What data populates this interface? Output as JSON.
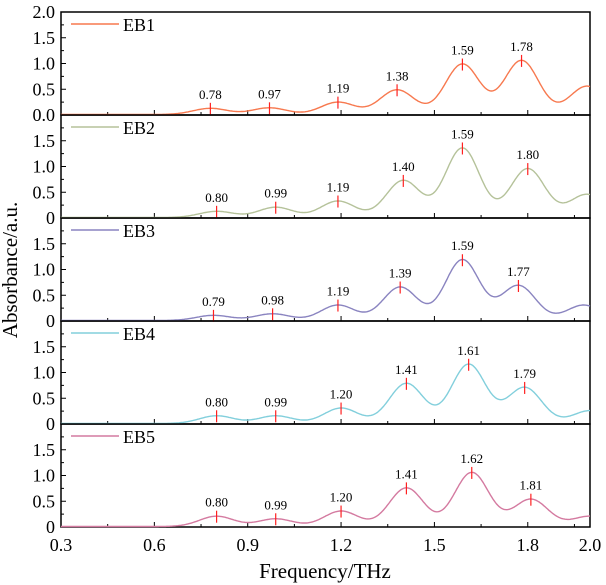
{
  "chart_data": {
    "type": "line",
    "xlabel": "Frequency/THz",
    "ylabel": "Absorbance/a.u.",
    "xlim": [
      0.3,
      2.0
    ],
    "ylim": [
      0,
      2.0
    ],
    "x_ticks": [
      "0.3",
      "0.6",
      "0.9",
      "1.2",
      "1.5",
      "1.8",
      "2.0"
    ],
    "x_tick_values": [
      0.3,
      0.6,
      0.9,
      1.2,
      1.5,
      1.8,
      2.0
    ],
    "top_y_ticks": [
      "0.0",
      "0.5",
      "1.0",
      "1.5",
      "2.0"
    ],
    "y_ticks": [
      "0",
      "0.5",
      "1.0",
      "1.5"
    ],
    "y_tick_values": [
      0,
      0.5,
      1.0,
      1.5,
      2.0
    ],
    "peak_width_thz": 0.055,
    "series": [
      {
        "name": "EB1",
        "color": "#f7794f",
        "peaks": [
          {
            "x": 0.78,
            "y": 0.12,
            "label": "0.78"
          },
          {
            "x": 0.97,
            "y": 0.13,
            "label": "0.97"
          },
          {
            "x": 1.19,
            "y": 0.24,
            "label": "1.19"
          },
          {
            "x": 1.38,
            "y": 0.48,
            "label": "1.38"
          },
          {
            "x": 1.59,
            "y": 0.98,
            "label": "1.59"
          },
          {
            "x": 1.78,
            "y": 1.05,
            "label": "1.78"
          }
        ],
        "tail": {
          "x": 1.99,
          "y": 0.55
        }
      },
      {
        "name": "EB2",
        "color": "#b5c29a",
        "peaks": [
          {
            "x": 0.8,
            "y": 0.12,
            "label": "0.80"
          },
          {
            "x": 0.99,
            "y": 0.2,
            "label": "0.99"
          },
          {
            "x": 1.19,
            "y": 0.32,
            "label": "1.19"
          },
          {
            "x": 1.4,
            "y": 0.72,
            "label": "1.40"
          },
          {
            "x": 1.59,
            "y": 1.35,
            "label": "1.59"
          },
          {
            "x": 1.8,
            "y": 0.95,
            "label": "1.80"
          }
        ],
        "tail": {
          "x": 1.99,
          "y": 0.45
        }
      },
      {
        "name": "EB3",
        "color": "#8a84c0",
        "peaks": [
          {
            "x": 0.79,
            "y": 0.1,
            "label": "0.79"
          },
          {
            "x": 0.98,
            "y": 0.13,
            "label": "0.98"
          },
          {
            "x": 1.19,
            "y": 0.3,
            "label": "1.19"
          },
          {
            "x": 1.39,
            "y": 0.65,
            "label": "1.39"
          },
          {
            "x": 1.59,
            "y": 1.18,
            "label": "1.59"
          },
          {
            "x": 1.77,
            "y": 0.68,
            "label": "1.77"
          }
        ],
        "tail": {
          "x": 1.98,
          "y": 0.3
        }
      },
      {
        "name": "EB4",
        "color": "#82cfdc",
        "peaks": [
          {
            "x": 0.8,
            "y": 0.15,
            "label": "0.80"
          },
          {
            "x": 0.99,
            "y": 0.15,
            "label": "0.99"
          },
          {
            "x": 1.2,
            "y": 0.3,
            "label": "1.20"
          },
          {
            "x": 1.41,
            "y": 0.78,
            "label": "1.41"
          },
          {
            "x": 1.61,
            "y": 1.15,
            "label": "1.61"
          },
          {
            "x": 1.79,
            "y": 0.7,
            "label": "1.79"
          }
        ],
        "tail": {
          "x": 2.0,
          "y": 0.25
        }
      },
      {
        "name": "EB5",
        "color": "#d47aa0",
        "peaks": [
          {
            "x": 0.8,
            "y": 0.2,
            "label": "0.80"
          },
          {
            "x": 0.99,
            "y": 0.15,
            "label": "0.99"
          },
          {
            "x": 1.2,
            "y": 0.3,
            "label": "1.20"
          },
          {
            "x": 1.41,
            "y": 0.75,
            "label": "1.41"
          },
          {
            "x": 1.62,
            "y": 1.05,
            "label": "1.62"
          },
          {
            "x": 1.81,
            "y": 0.53,
            "label": "1.81"
          }
        ],
        "tail": {
          "x": 2.0,
          "y": 0.2
        }
      }
    ],
    "marker_color": "#ff2020"
  }
}
